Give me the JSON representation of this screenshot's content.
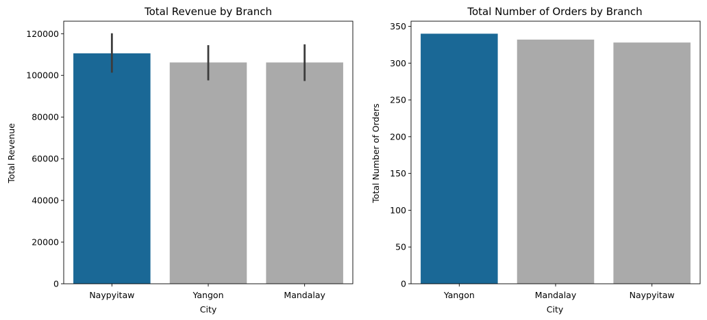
{
  "figure": {
    "background": "#ffffff",
    "highlight_color": "#1a6896",
    "base_color": "#aaaaaa",
    "error_bar_color": "#3c3c3c"
  },
  "chart_data": [
    {
      "type": "bar",
      "title": "Total Revenue by Branch",
      "xlabel": "City",
      "ylabel": "Total Revenue",
      "categories": [
        "Naypyitaw",
        "Yangon",
        "Mandalay"
      ],
      "values": [
        110569,
        106200,
        106198
      ],
      "error_bars": [
        [
          101300,
          120200
        ],
        [
          97600,
          114500
        ],
        [
          97300,
          114900
        ]
      ],
      "highlight": [
        true,
        false,
        false
      ],
      "ylim": [
        0,
        126000
      ],
      "yticks": [
        0,
        20000,
        40000,
        60000,
        80000,
        100000,
        120000
      ],
      "ytick_labels": [
        "0",
        "20000",
        "40000",
        "60000",
        "80000",
        "100000",
        "120000"
      ],
      "grid": false,
      "legend": "none"
    },
    {
      "type": "bar",
      "title": "Total Number of Orders by Branch",
      "xlabel": "City",
      "ylabel": "Total Number of Orders",
      "categories": [
        "Yangon",
        "Mandalay",
        "Naypyitaw"
      ],
      "values": [
        340,
        332,
        328
      ],
      "highlight": [
        true,
        false,
        false
      ],
      "ylim": [
        0,
        357
      ],
      "yticks": [
        0,
        50,
        100,
        150,
        200,
        250,
        300,
        350
      ],
      "ytick_labels": [
        "0",
        "50",
        "100",
        "150",
        "200",
        "250",
        "300",
        "350"
      ],
      "grid": false,
      "legend": "none"
    }
  ]
}
